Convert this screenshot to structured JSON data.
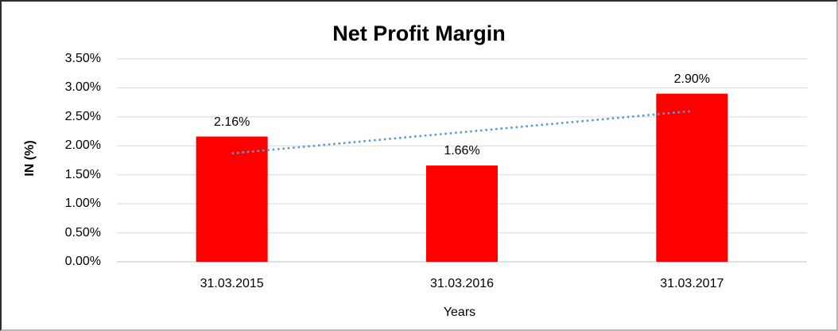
{
  "chart_data": {
    "type": "bar",
    "title": "Net Profit Margin",
    "xlabel": "Years",
    "ylabel": "IN (%)",
    "categories": [
      "31.03.2015",
      "31.03.2016",
      "31.03.2017"
    ],
    "values": [
      2.16,
      1.66,
      2.9
    ],
    "value_labels": [
      "2.16%",
      "1.66%",
      "2.90%"
    ],
    "ylim": [
      0,
      3.5
    ],
    "ytick_step": 0.5,
    "ytick_labels": [
      "0.00%",
      "0.50%",
      "1.00%",
      "1.50%",
      "2.00%",
      "2.50%",
      "3.00%",
      "3.50%"
    ],
    "grid": true,
    "legend": false,
    "bar_color": "#FF0000",
    "gridline_color": "#D9D9D9",
    "axis_line_color": "#BFBFBF",
    "text_color": "#000000",
    "trendline": {
      "type": "linear",
      "style": "dotted",
      "color": "#5B9BD5",
      "start_value": 1.87,
      "end_value": 2.6
    }
  }
}
